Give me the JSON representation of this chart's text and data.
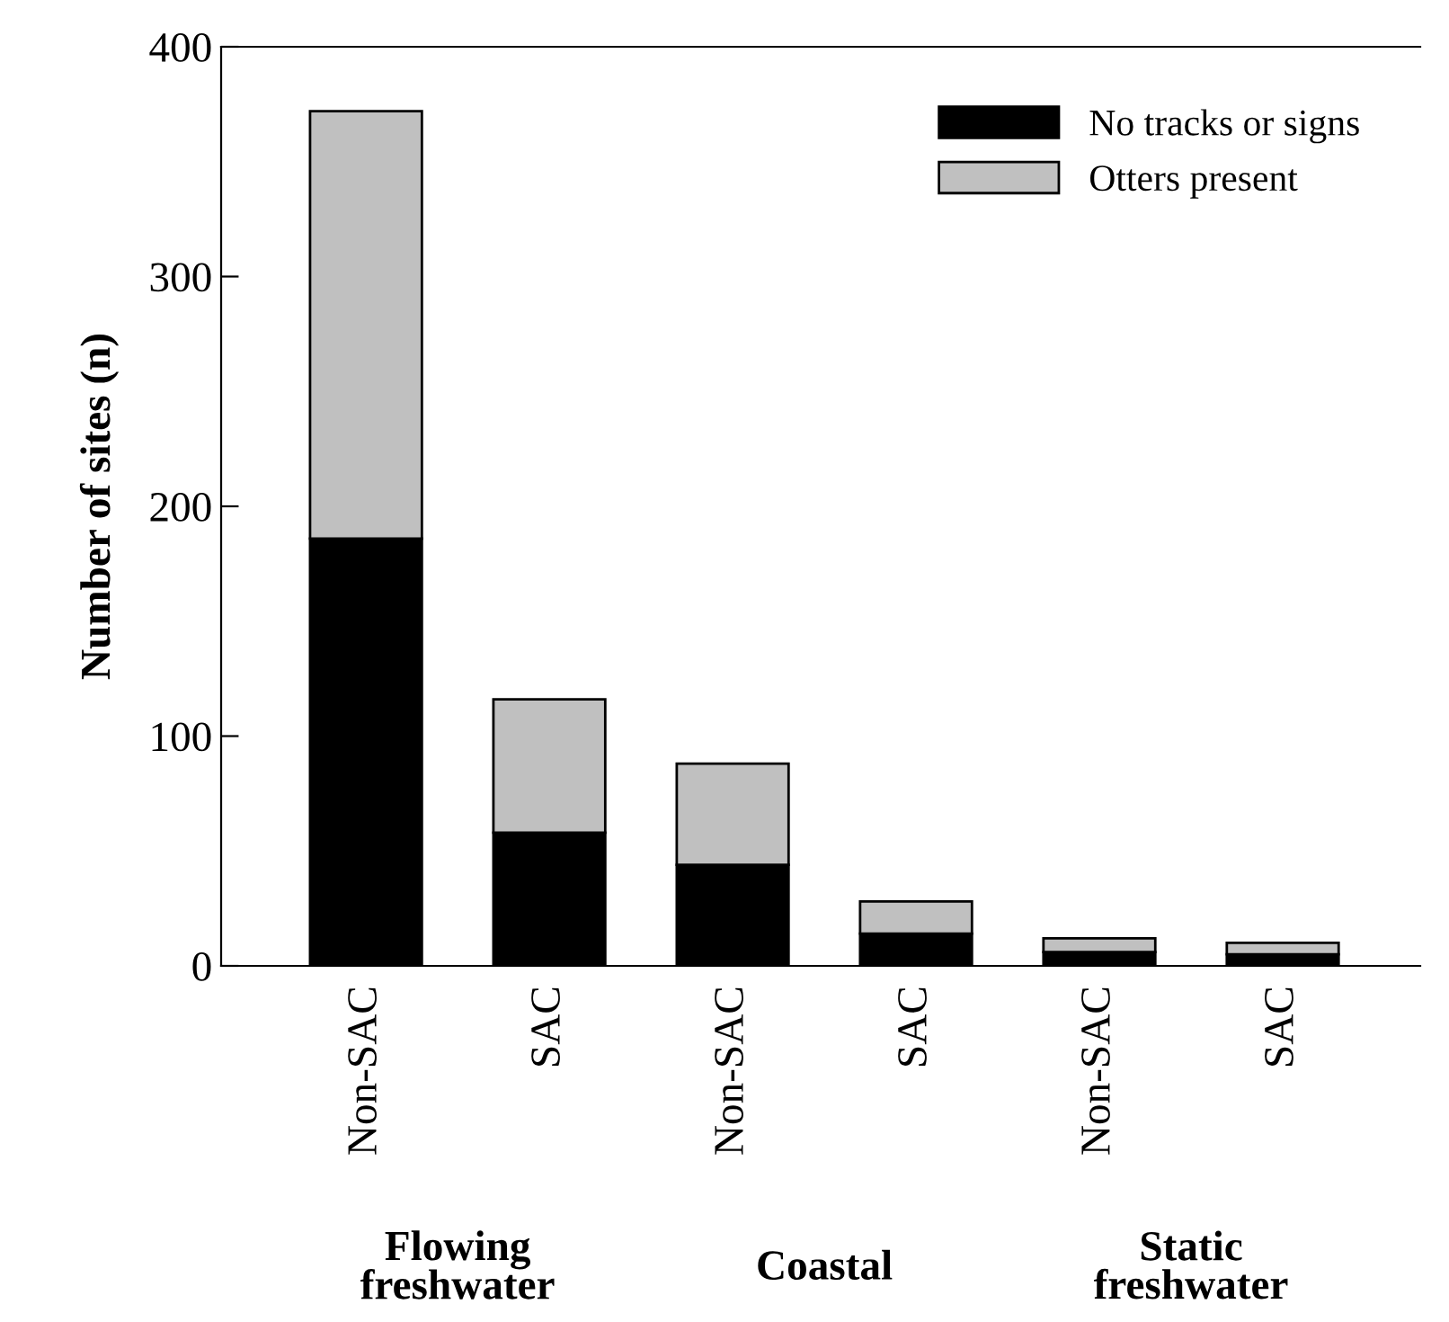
{
  "chart_data": {
    "type": "bar",
    "stacked": true,
    "ylabel": "Number of sites (n)",
    "categories": [
      "Non-SAC",
      "SAC",
      "Non-SAC",
      "SAC",
      "Non-SAC",
      "SAC"
    ],
    "series": [
      {
        "name": "No tracks or signs",
        "color": "#000000",
        "values": [
          186,
          58,
          44,
          14,
          6,
          5
        ]
      },
      {
        "name": "Otters present",
        "color": "#c0c0c0",
        "values": [
          186,
          58,
          44,
          14,
          6,
          5
        ]
      }
    ],
    "ylim": [
      0,
      400
    ],
    "yticks": [
      0,
      100,
      200,
      300,
      400
    ],
    "grid": false,
    "legend": "top right",
    "annotations": [
      "Flowing\nfreshwater",
      "Coastal",
      "Static\nfreshwater"
    ]
  }
}
